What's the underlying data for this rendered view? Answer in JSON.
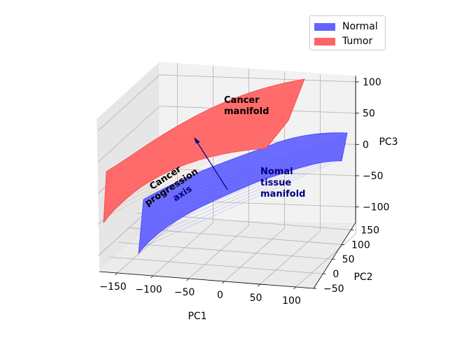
{
  "chart_data": {
    "type": "surface3d",
    "axes": {
      "x": {
        "label": "PC1",
        "ticks": [
          -150,
          -100,
          -50,
          0,
          50,
          100
        ],
        "range": [
          -175,
          125
        ]
      },
      "y": {
        "label": "PC2",
        "ticks": [
          -50,
          0,
          50,
          100,
          150
        ],
        "range": [
          -50,
          175
        ]
      },
      "z": {
        "label": "PC3",
        "ticks": [
          -100,
          -50,
          0,
          50,
          100
        ],
        "range": [
          -125,
          110
        ]
      }
    },
    "series": [
      {
        "name": "Normal",
        "color": "#6464ff",
        "description_points": "lower curved surface"
      },
      {
        "name": "Tumor",
        "color": "#ff6464",
        "description_points": "upper curved surface"
      }
    ],
    "annotations": [
      {
        "text_lines": [
          "Cancer",
          "manifold"
        ],
        "color": "#000000"
      },
      {
        "text_lines": [
          "Nomal",
          "tissue",
          "manifold"
        ],
        "color": "#000080"
      },
      {
        "text_lines": [
          "Cancer",
          "progression",
          "axis"
        ],
        "color": "#000000"
      }
    ],
    "grid": true,
    "legend_position": "top-right"
  },
  "legend": {
    "items": [
      {
        "label": "Normal",
        "color": "#6464ff"
      },
      {
        "label": "Tumor",
        "color": "#ff6464"
      }
    ]
  }
}
